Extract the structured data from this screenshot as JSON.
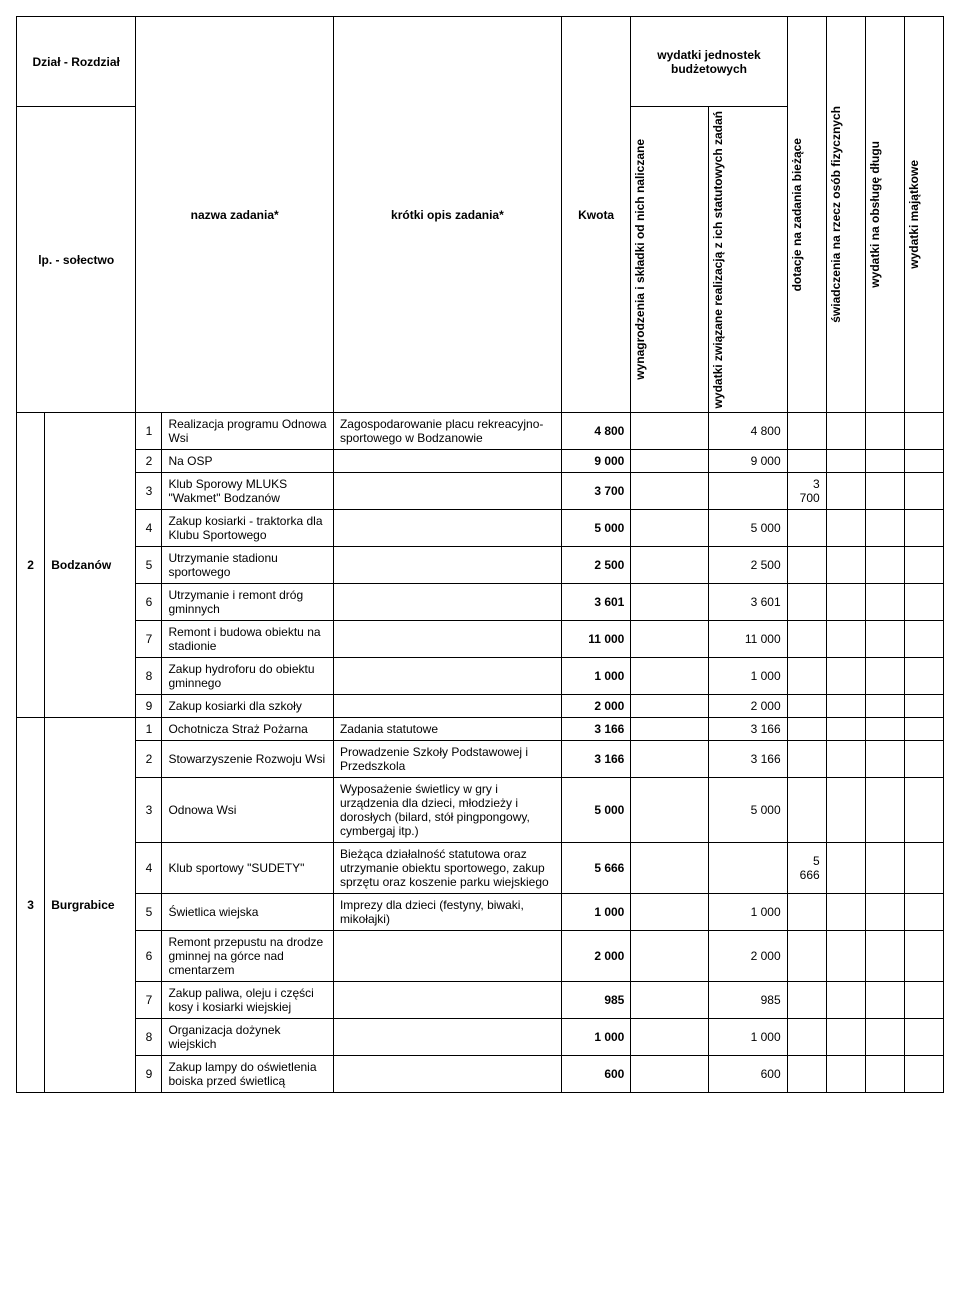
{
  "headers": {
    "dzial": "Dział - Rozdział",
    "lp": "lp. - sołectwo",
    "nazwa": "nazwa zadania*",
    "opis": "krótki opis zadania*",
    "kwota": "Kwota",
    "wj": "wydatki jednostek budżetowych",
    "wj1": "wynagrodzenia i składki od nich naliczane",
    "wj2": "wydatki związane realizacją z ich statutowych zadań",
    "dot": "dotacje na zadania bieżące",
    "sw": "świadczenia na rzecz osób fizycznych",
    "obsl": "wydatki na obsługę długu",
    "maj": "wydatki majątkowe"
  },
  "groups": [
    {
      "lp": "2",
      "solectwo": "Bodzanów",
      "tasks": [
        {
          "n": "1",
          "name": "Realizacja programu Odnowa Wsi",
          "desc": "Zagospodarowanie placu rekreacyjno-sportowego w Bodzanowie",
          "kwota": "4 800",
          "wj2": "4 800"
        },
        {
          "n": "2",
          "name": "Na OSP",
          "desc": "",
          "kwota": "9 000",
          "wj2": "9 000"
        },
        {
          "n": "3",
          "name": "Klub Sporowy MLUKS \"Wakmet\" Bodzanów",
          "desc": "",
          "kwota": "3 700",
          "dot": "3 700"
        },
        {
          "n": "4",
          "name": "Zakup kosiarki - traktorka dla Klubu Sportowego",
          "desc": "",
          "kwota": "5 000",
          "wj2": "5 000"
        },
        {
          "n": "5",
          "name": "Utrzymanie stadionu sportowego",
          "desc": "",
          "kwota": "2 500",
          "wj2": "2 500"
        },
        {
          "n": "6",
          "name": "Utrzymanie i remont dróg gminnych",
          "desc": "",
          "kwota": "3 601",
          "wj2": "3 601"
        },
        {
          "n": "7",
          "name": "Remont i budowa obiektu na stadionie",
          "desc": "",
          "kwota": "11 000",
          "wj2": "11 000"
        },
        {
          "n": "8",
          "name": "Zakup hydroforu do obiektu gminnego",
          "desc": "",
          "kwota": "1 000",
          "wj2": "1 000"
        },
        {
          "n": "9",
          "name": "Zakup kosiarki dla szkoły",
          "desc": "",
          "kwota": "2 000",
          "wj2": "2 000"
        }
      ]
    },
    {
      "lp": "3",
      "solectwo": "Burgrabice",
      "tasks": [
        {
          "n": "1",
          "name": "Ochotnicza Straż Pożarna",
          "desc": "Zadania statutowe",
          "kwota": "3 166",
          "wj2": "3 166"
        },
        {
          "n": "2",
          "name": "Stowarzyszenie Rozwoju Wsi",
          "desc": "Prowadzenie Szkoły Podstawowej i Przedszkola",
          "kwota": "3 166",
          "wj2": "3 166"
        },
        {
          "n": "3",
          "name": "Odnowa Wsi",
          "desc": "Wyposażenie świetlicy w gry i urządzenia dla dzieci, młodzieży i dorosłych (bilard, stół pingpongowy, cymbergaj itp.)",
          "kwota": "5 000",
          "wj2": "5 000"
        },
        {
          "n": "4",
          "name": "Klub sportowy \"SUDETY\"",
          "desc": "Bieżąca działalność statutowa oraz utrzymanie obiektu sportowego, zakup sprzętu oraz koszenie parku wiejskiego",
          "kwota": "5 666",
          "dot": "5 666"
        },
        {
          "n": "5",
          "name": "Świetlica wiejska",
          "desc": "Imprezy dla dzieci (festyny, biwaki, mikołajki)",
          "kwota": "1 000",
          "wj2": "1 000"
        },
        {
          "n": "6",
          "name": "Remont przepustu na drodze gminnej na górce nad cmentarzem",
          "desc": "",
          "kwota": "2 000",
          "wj2": "2 000"
        },
        {
          "n": "7",
          "name": "Zakup paliwa, oleju i części kosy i kosiarki wiejskiej",
          "desc": "",
          "kwota": "985",
          "wj2": "985"
        },
        {
          "n": "8",
          "name": "Organizacja dożynek wiejskich",
          "desc": "",
          "kwota": "1 000",
          "wj2": "1 000"
        },
        {
          "n": "9",
          "name": "Zakup lampy do oświetlenia boiska przed świetlicą",
          "desc": "",
          "kwota": "600",
          "wj2": "600"
        }
      ]
    }
  ]
}
